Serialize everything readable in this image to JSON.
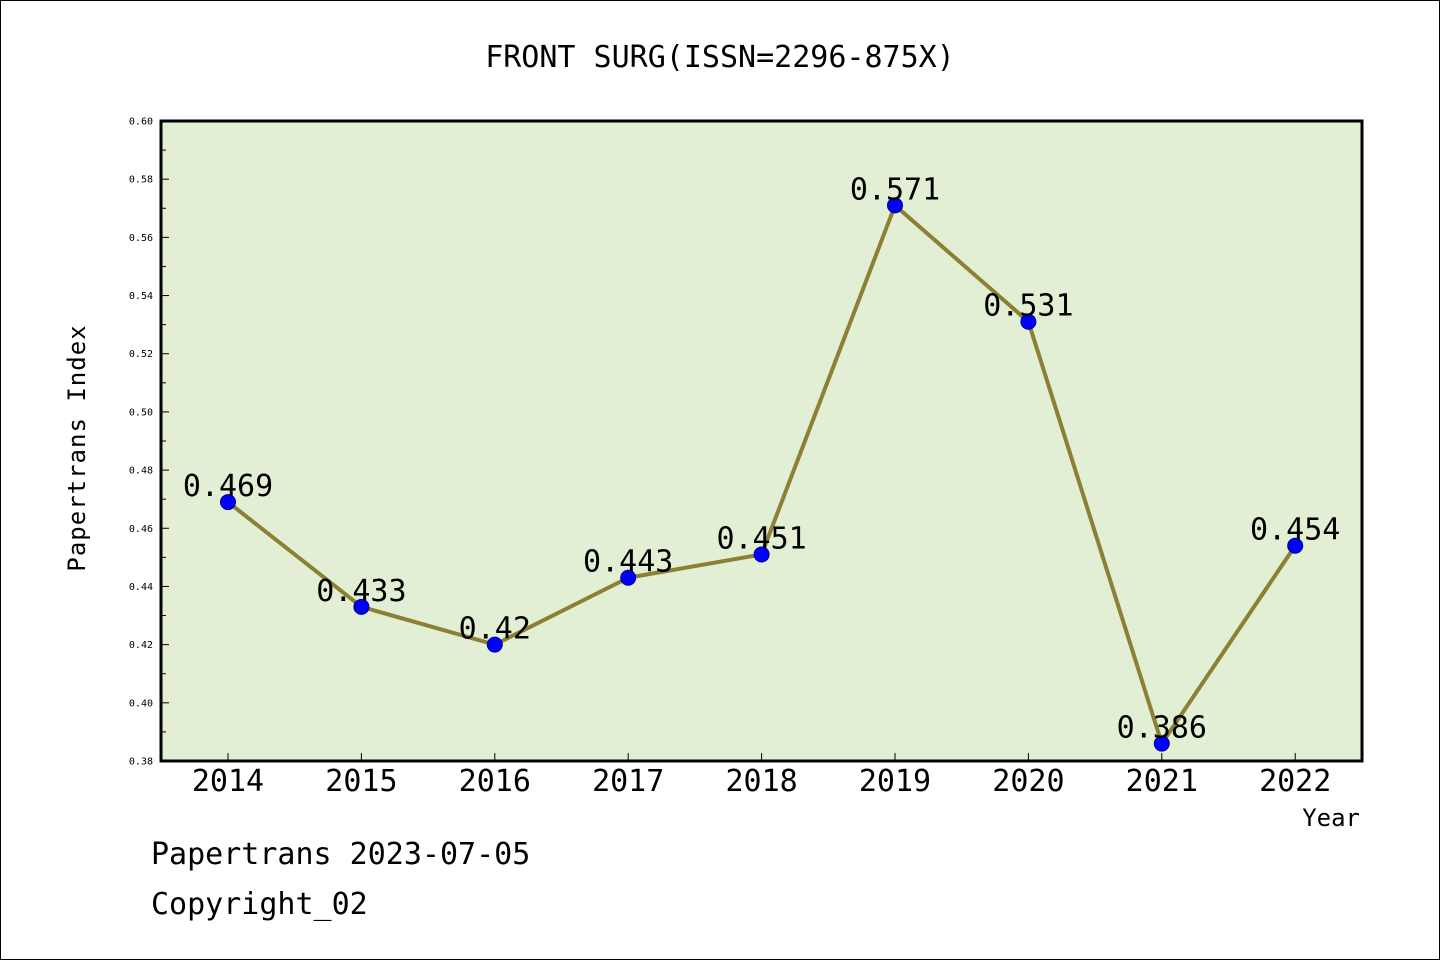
{
  "chart_data": {
    "type": "line",
    "title": "FRONT SURG(ISSN=2296-875X)",
    "xlabel": "Year",
    "ylabel": "Papertrans Index",
    "categories": [
      "2014",
      "2015",
      "2016",
      "2017",
      "2018",
      "2019",
      "2020",
      "2021",
      "2022"
    ],
    "series": [
      {
        "values": [
          0.469,
          0.433,
          0.42,
          0.443,
          0.451,
          0.571,
          0.531,
          0.386,
          0.454
        ],
        "data_labels": [
          "0.469",
          "0.433",
          "0.42",
          "0.443",
          "0.451",
          "0.571",
          "0.531",
          "0.386",
          "0.454"
        ],
        "line_color": "#8b8033",
        "marker_color": "#0000ff"
      }
    ],
    "ylim": [
      0.38,
      0.6
    ],
    "yticks": [
      "0.38",
      "0.40",
      "0.42",
      "0.44",
      "0.46",
      "0.48",
      "0.50",
      "0.52",
      "0.54",
      "0.56",
      "0.58",
      "0.60"
    ],
    "plot_background": "#e2efd5",
    "grid": false,
    "legend": "none"
  },
  "footer": {
    "line1": "Papertrans 2023-07-05",
    "line2": "Copyright_02"
  }
}
